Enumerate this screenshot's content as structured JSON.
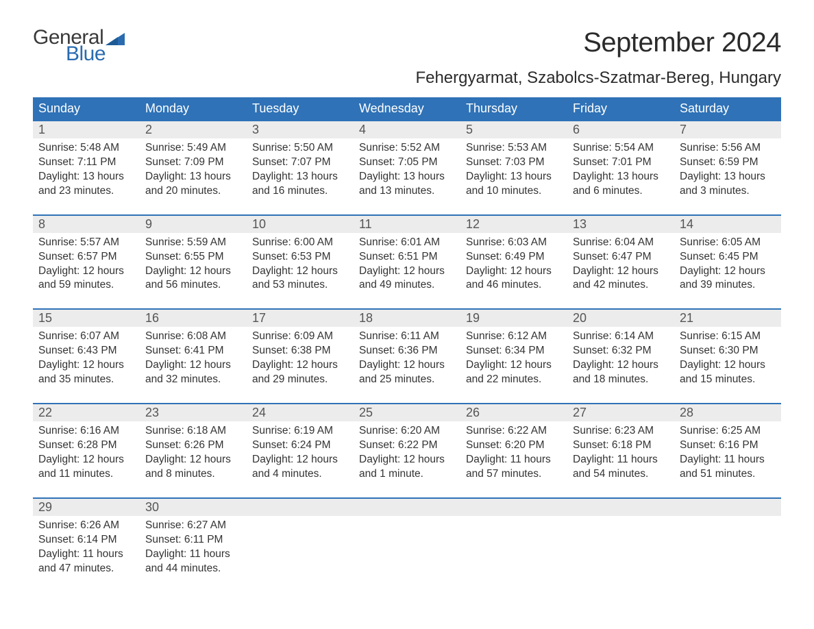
{
  "logo": {
    "word1": "General",
    "word2": "Blue",
    "word1_color": "#3a3a3a",
    "word2_color": "#2a6bb0",
    "flag_color": "#2a6bb0"
  },
  "title": "September 2024",
  "location": "Fehergyarmat, Szabolcs-Szatmar-Bereg, Hungary",
  "colors": {
    "header_bg": "#2f72b7",
    "header_text": "#ffffff",
    "daynum_bg": "#ececec",
    "daynum_border": "#2f72b7",
    "body_text": "#333333",
    "daynum_text": "#555555"
  },
  "fonts": {
    "title_size_pt": 30,
    "location_size_pt": 18,
    "dow_size_pt": 14,
    "daynum_size_pt": 14,
    "detail_size_pt": 12
  },
  "dow": [
    "Sunday",
    "Monday",
    "Tuesday",
    "Wednesday",
    "Thursday",
    "Friday",
    "Saturday"
  ],
  "weeks": [
    [
      {
        "num": "1",
        "sunrise": "Sunrise: 5:48 AM",
        "sunset": "Sunset: 7:11 PM",
        "day1": "Daylight: 13 hours",
        "day2": "and 23 minutes."
      },
      {
        "num": "2",
        "sunrise": "Sunrise: 5:49 AM",
        "sunset": "Sunset: 7:09 PM",
        "day1": "Daylight: 13 hours",
        "day2": "and 20 minutes."
      },
      {
        "num": "3",
        "sunrise": "Sunrise: 5:50 AM",
        "sunset": "Sunset: 7:07 PM",
        "day1": "Daylight: 13 hours",
        "day2": "and 16 minutes."
      },
      {
        "num": "4",
        "sunrise": "Sunrise: 5:52 AM",
        "sunset": "Sunset: 7:05 PM",
        "day1": "Daylight: 13 hours",
        "day2": "and 13 minutes."
      },
      {
        "num": "5",
        "sunrise": "Sunrise: 5:53 AM",
        "sunset": "Sunset: 7:03 PM",
        "day1": "Daylight: 13 hours",
        "day2": "and 10 minutes."
      },
      {
        "num": "6",
        "sunrise": "Sunrise: 5:54 AM",
        "sunset": "Sunset: 7:01 PM",
        "day1": "Daylight: 13 hours",
        "day2": "and 6 minutes."
      },
      {
        "num": "7",
        "sunrise": "Sunrise: 5:56 AM",
        "sunset": "Sunset: 6:59 PM",
        "day1": "Daylight: 13 hours",
        "day2": "and 3 minutes."
      }
    ],
    [
      {
        "num": "8",
        "sunrise": "Sunrise: 5:57 AM",
        "sunset": "Sunset: 6:57 PM",
        "day1": "Daylight: 12 hours",
        "day2": "and 59 minutes."
      },
      {
        "num": "9",
        "sunrise": "Sunrise: 5:59 AM",
        "sunset": "Sunset: 6:55 PM",
        "day1": "Daylight: 12 hours",
        "day2": "and 56 minutes."
      },
      {
        "num": "10",
        "sunrise": "Sunrise: 6:00 AM",
        "sunset": "Sunset: 6:53 PM",
        "day1": "Daylight: 12 hours",
        "day2": "and 53 minutes."
      },
      {
        "num": "11",
        "sunrise": "Sunrise: 6:01 AM",
        "sunset": "Sunset: 6:51 PM",
        "day1": "Daylight: 12 hours",
        "day2": "and 49 minutes."
      },
      {
        "num": "12",
        "sunrise": "Sunrise: 6:03 AM",
        "sunset": "Sunset: 6:49 PM",
        "day1": "Daylight: 12 hours",
        "day2": "and 46 minutes."
      },
      {
        "num": "13",
        "sunrise": "Sunrise: 6:04 AM",
        "sunset": "Sunset: 6:47 PM",
        "day1": "Daylight: 12 hours",
        "day2": "and 42 minutes."
      },
      {
        "num": "14",
        "sunrise": "Sunrise: 6:05 AM",
        "sunset": "Sunset: 6:45 PM",
        "day1": "Daylight: 12 hours",
        "day2": "and 39 minutes."
      }
    ],
    [
      {
        "num": "15",
        "sunrise": "Sunrise: 6:07 AM",
        "sunset": "Sunset: 6:43 PM",
        "day1": "Daylight: 12 hours",
        "day2": "and 35 minutes."
      },
      {
        "num": "16",
        "sunrise": "Sunrise: 6:08 AM",
        "sunset": "Sunset: 6:41 PM",
        "day1": "Daylight: 12 hours",
        "day2": "and 32 minutes."
      },
      {
        "num": "17",
        "sunrise": "Sunrise: 6:09 AM",
        "sunset": "Sunset: 6:38 PM",
        "day1": "Daylight: 12 hours",
        "day2": "and 29 minutes."
      },
      {
        "num": "18",
        "sunrise": "Sunrise: 6:11 AM",
        "sunset": "Sunset: 6:36 PM",
        "day1": "Daylight: 12 hours",
        "day2": "and 25 minutes."
      },
      {
        "num": "19",
        "sunrise": "Sunrise: 6:12 AM",
        "sunset": "Sunset: 6:34 PM",
        "day1": "Daylight: 12 hours",
        "day2": "and 22 minutes."
      },
      {
        "num": "20",
        "sunrise": "Sunrise: 6:14 AM",
        "sunset": "Sunset: 6:32 PM",
        "day1": "Daylight: 12 hours",
        "day2": "and 18 minutes."
      },
      {
        "num": "21",
        "sunrise": "Sunrise: 6:15 AM",
        "sunset": "Sunset: 6:30 PM",
        "day1": "Daylight: 12 hours",
        "day2": "and 15 minutes."
      }
    ],
    [
      {
        "num": "22",
        "sunrise": "Sunrise: 6:16 AM",
        "sunset": "Sunset: 6:28 PM",
        "day1": "Daylight: 12 hours",
        "day2": "and 11 minutes."
      },
      {
        "num": "23",
        "sunrise": "Sunrise: 6:18 AM",
        "sunset": "Sunset: 6:26 PM",
        "day1": "Daylight: 12 hours",
        "day2": "and 8 minutes."
      },
      {
        "num": "24",
        "sunrise": "Sunrise: 6:19 AM",
        "sunset": "Sunset: 6:24 PM",
        "day1": "Daylight: 12 hours",
        "day2": "and 4 minutes."
      },
      {
        "num": "25",
        "sunrise": "Sunrise: 6:20 AM",
        "sunset": "Sunset: 6:22 PM",
        "day1": "Daylight: 12 hours",
        "day2": "and 1 minute."
      },
      {
        "num": "26",
        "sunrise": "Sunrise: 6:22 AM",
        "sunset": "Sunset: 6:20 PM",
        "day1": "Daylight: 11 hours",
        "day2": "and 57 minutes."
      },
      {
        "num": "27",
        "sunrise": "Sunrise: 6:23 AM",
        "sunset": "Sunset: 6:18 PM",
        "day1": "Daylight: 11 hours",
        "day2": "and 54 minutes."
      },
      {
        "num": "28",
        "sunrise": "Sunrise: 6:25 AM",
        "sunset": "Sunset: 6:16 PM",
        "day1": "Daylight: 11 hours",
        "day2": "and 51 minutes."
      }
    ],
    [
      {
        "num": "29",
        "sunrise": "Sunrise: 6:26 AM",
        "sunset": "Sunset: 6:14 PM",
        "day1": "Daylight: 11 hours",
        "day2": "and 47 minutes."
      },
      {
        "num": "30",
        "sunrise": "Sunrise: 6:27 AM",
        "sunset": "Sunset: 6:11 PM",
        "day1": "Daylight: 11 hours",
        "day2": "and 44 minutes."
      },
      null,
      null,
      null,
      null,
      null
    ]
  ]
}
